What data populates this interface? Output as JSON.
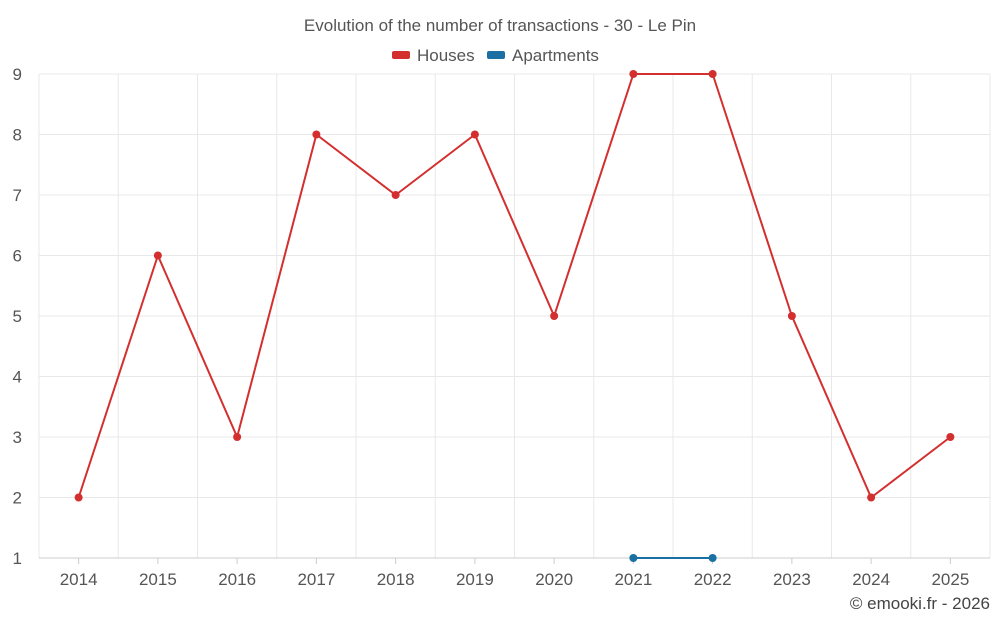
{
  "chart_data": {
    "type": "line",
    "title": "Evolution of the number of transactions - 30 - Le Pin",
    "categories": [
      "2014",
      "2015",
      "2016",
      "2017",
      "2018",
      "2019",
      "2020",
      "2021",
      "2022",
      "2023",
      "2024",
      "2025"
    ],
    "series": [
      {
        "name": "Houses",
        "color": "#d32f2f",
        "values": [
          2,
          6,
          3,
          8,
          7,
          8,
          5,
          9,
          9,
          5,
          2,
          3
        ]
      },
      {
        "name": "Apartments",
        "color": "#1a6fa3",
        "values": [
          null,
          null,
          null,
          null,
          null,
          null,
          null,
          1,
          1,
          null,
          null,
          null
        ]
      }
    ],
    "ylim": [
      1,
      9
    ],
    "yticks": [
      "1",
      "2",
      "3",
      "4",
      "5",
      "6",
      "7",
      "8",
      "9"
    ],
    "xlabel": "",
    "ylabel": "",
    "grid": true,
    "legend": "top-center"
  },
  "credit": "© emooki.fr - 2026"
}
